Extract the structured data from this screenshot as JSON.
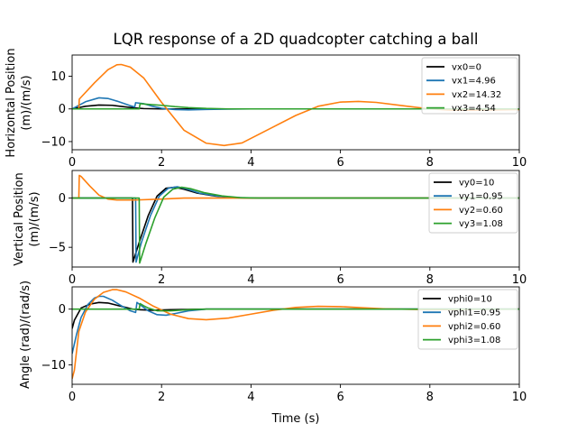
{
  "figure": {
    "title": "LQR response of a 2D quadcopter catching a ball",
    "xlabel": "Time (s)",
    "colors": {
      "c0": "#000000",
      "c1": "#1f77b4",
      "c2": "#ff7f0e",
      "c3": "#2ca02c"
    }
  },
  "chart_data": [
    {
      "type": "line",
      "ylabel": [
        "Horizontal Position",
        "(m)/(m/s)"
      ],
      "xlim": [
        0,
        10
      ],
      "ylim": [
        -12.5,
        16.5
      ],
      "xticks": [
        0,
        2,
        4,
        6,
        8,
        10
      ],
      "yticks": [
        -10,
        0,
        10
      ],
      "legend": "top-right",
      "series": [
        {
          "name": "vx0=0",
          "color": "#000000",
          "x": [
            0,
            0.3,
            0.6,
            0.9,
            1.2,
            1.4,
            1.6,
            2.0,
            3.0,
            10
          ],
          "y": [
            0,
            0.8,
            1.2,
            1.1,
            0.6,
            0.3,
            0.1,
            0,
            0,
            0
          ]
        },
        {
          "name": "vx1=4.96",
          "color": "#1f77b4",
          "x": [
            0,
            0.3,
            0.6,
            0.8,
            1.0,
            1.3,
            1.4,
            1.42,
            1.6,
            1.8,
            2.0,
            2.3,
            2.6,
            3.0,
            3.5,
            4.0,
            10
          ],
          "y": [
            0,
            2.2,
            3.4,
            3.2,
            2.4,
            1.0,
            0.6,
            1.9,
            1.6,
            0.8,
            0.2,
            -0.2,
            -0.3,
            -0.15,
            -0.05,
            0,
            0
          ]
        },
        {
          "name": "vx2=14.32",
          "color": "#ff7f0e",
          "x": [
            0,
            0.15,
            0.16,
            0.5,
            0.8,
            1.0,
            1.1,
            1.3,
            1.6,
            2.0,
            2.5,
            3.0,
            3.4,
            3.8,
            4.5,
            5.0,
            5.5,
            6.0,
            6.4,
            6.8,
            7.5,
            8.0,
            8.5,
            9.0,
            10
          ],
          "y": [
            0,
            0,
            3.0,
            8.0,
            12.0,
            13.5,
            13.6,
            12.8,
            9.5,
            2.0,
            -6.5,
            -10.5,
            -11.2,
            -10.4,
            -5.5,
            -2.0,
            0.8,
            2.1,
            2.3,
            2.0,
            0.8,
            0.0,
            -0.4,
            -0.4,
            -0.2
          ]
        },
        {
          "name": "vx3=4.54",
          "color": "#2ca02c",
          "x": [
            0,
            1.4,
            1.5,
            1.52,
            1.7,
            2.0,
            2.3,
            2.6,
            3.0,
            3.5,
            4.0,
            10
          ],
          "y": [
            0,
            0,
            0,
            1.6,
            1.4,
            1.1,
            0.7,
            0.4,
            0.15,
            0,
            0,
            0
          ]
        }
      ]
    },
    {
      "type": "line",
      "ylabel": [
        "Vertical Position",
        "(m)/(m/s)"
      ],
      "xlim": [
        0,
        10
      ],
      "ylim": [
        -7.0,
        2.8
      ],
      "xticks": [
        0,
        2,
        4,
        6,
        8,
        10
      ],
      "yticks": [
        -5,
        0
      ],
      "legend": "top-right",
      "series": [
        {
          "name": "vy0=10",
          "color": "#000000",
          "x": [
            0,
            1.35,
            1.36,
            1.5,
            1.7,
            1.9,
            2.1,
            2.3,
            2.5,
            2.8,
            3.2,
            3.6,
            4.0,
            10
          ],
          "y": [
            0,
            0,
            -6.5,
            -4.5,
            -1.8,
            0.2,
            1.0,
            1.1,
            0.9,
            0.5,
            0.2,
            0.05,
            0,
            0
          ]
        },
        {
          "name": "vy1=0.95",
          "color": "#1f77b4",
          "x": [
            0,
            1.42,
            1.43,
            1.55,
            1.75,
            1.95,
            2.15,
            2.35,
            2.55,
            2.85,
            3.25,
            3.65,
            4.1,
            10
          ],
          "y": [
            0,
            0,
            -6.5,
            -4.5,
            -1.8,
            0.2,
            1.0,
            1.15,
            0.95,
            0.5,
            0.2,
            0.05,
            0,
            0
          ]
        },
        {
          "name": "vy2=0.60",
          "color": "#ff7f0e",
          "x": [
            0,
            0.15,
            0.16,
            0.2,
            0.4,
            0.6,
            0.8,
            1.0,
            1.4,
            2.0,
            2.5,
            3.0,
            4.0,
            10
          ],
          "y": [
            0,
            0,
            2.3,
            2.2,
            1.2,
            0.3,
            -0.1,
            -0.2,
            -0.2,
            -0.1,
            0,
            0,
            0,
            0
          ]
        },
        {
          "name": "vy3=1.08",
          "color": "#2ca02c",
          "x": [
            0,
            1.5,
            1.51,
            1.65,
            1.85,
            2.05,
            2.25,
            2.45,
            2.65,
            2.95,
            3.35,
            3.75,
            4.2,
            10
          ],
          "y": [
            0,
            0,
            -6.6,
            -4.6,
            -2.0,
            0.1,
            0.9,
            1.1,
            0.95,
            0.55,
            0.22,
            0.05,
            0,
            0
          ]
        }
      ]
    },
    {
      "type": "line",
      "ylabel": [
        "Angle (rad)/(rad/s)"
      ],
      "xlim": [
        0,
        10
      ],
      "ylim": [
        -13.5,
        4.0
      ],
      "xticks": [
        0,
        2,
        4,
        6,
        8,
        10
      ],
      "yticks": [
        -10,
        0
      ],
      "legend": "top-right",
      "series": [
        {
          "name": "vphi0=10",
          "color": "#000000",
          "x": [
            0,
            0.05,
            0.2,
            0.4,
            0.6,
            0.8,
            1.0,
            1.2,
            1.35,
            1.5,
            1.8,
            2.2,
            3.0,
            10
          ],
          "y": [
            -3.5,
            -2.0,
            0.2,
            0.9,
            1.2,
            1.1,
            0.7,
            0.3,
            0,
            -0.1,
            -0.2,
            -0.1,
            0,
            0
          ]
        },
        {
          "name": "vphi1=0.95",
          "color": "#1f77b4",
          "x": [
            0,
            0.1,
            0.2,
            0.35,
            0.5,
            0.6,
            0.7,
            0.9,
            1.1,
            1.3,
            1.42,
            1.45,
            1.5,
            1.7,
            1.9,
            2.1,
            2.3,
            2.6,
            3.0,
            3.5,
            10
          ],
          "y": [
            -8.0,
            -4.5,
            -1.5,
            0.8,
            2.0,
            2.3,
            2.3,
            1.6,
            0.6,
            -0.3,
            -0.6,
            1.2,
            0.9,
            -0.3,
            -1.0,
            -1.1,
            -0.8,
            -0.3,
            0,
            0,
            0
          ]
        },
        {
          "name": "vphi2=0.60",
          "color": "#ff7f0e",
          "x": [
            0,
            0.05,
            0.15,
            0.3,
            0.5,
            0.7,
            0.9,
            1.0,
            1.2,
            1.5,
            1.8,
            2.2,
            2.6,
            3.0,
            3.5,
            4.0,
            4.5,
            5.0,
            5.5,
            6.0,
            6.5,
            7.0,
            8.0,
            9.0,
            10
          ],
          "y": [
            -12.5,
            -11.0,
            -4.0,
            -0.5,
            1.8,
            3.0,
            3.5,
            3.5,
            3.1,
            2.0,
            0.6,
            -0.9,
            -1.7,
            -1.9,
            -1.6,
            -0.9,
            -0.2,
            0.3,
            0.5,
            0.45,
            0.25,
            0.05,
            -0.1,
            -0.05,
            0
          ]
        },
        {
          "name": "vphi3=1.08",
          "color": "#2ca02c",
          "x": [
            0,
            1.4,
            1.5,
            1.52,
            1.6,
            1.7,
            1.9,
            2.2,
            2.6,
            3.0,
            10
          ],
          "y": [
            0,
            0,
            0,
            1.0,
            0.6,
            0.2,
            -0.3,
            -0.3,
            -0.1,
            0,
            0
          ]
        }
      ]
    }
  ]
}
